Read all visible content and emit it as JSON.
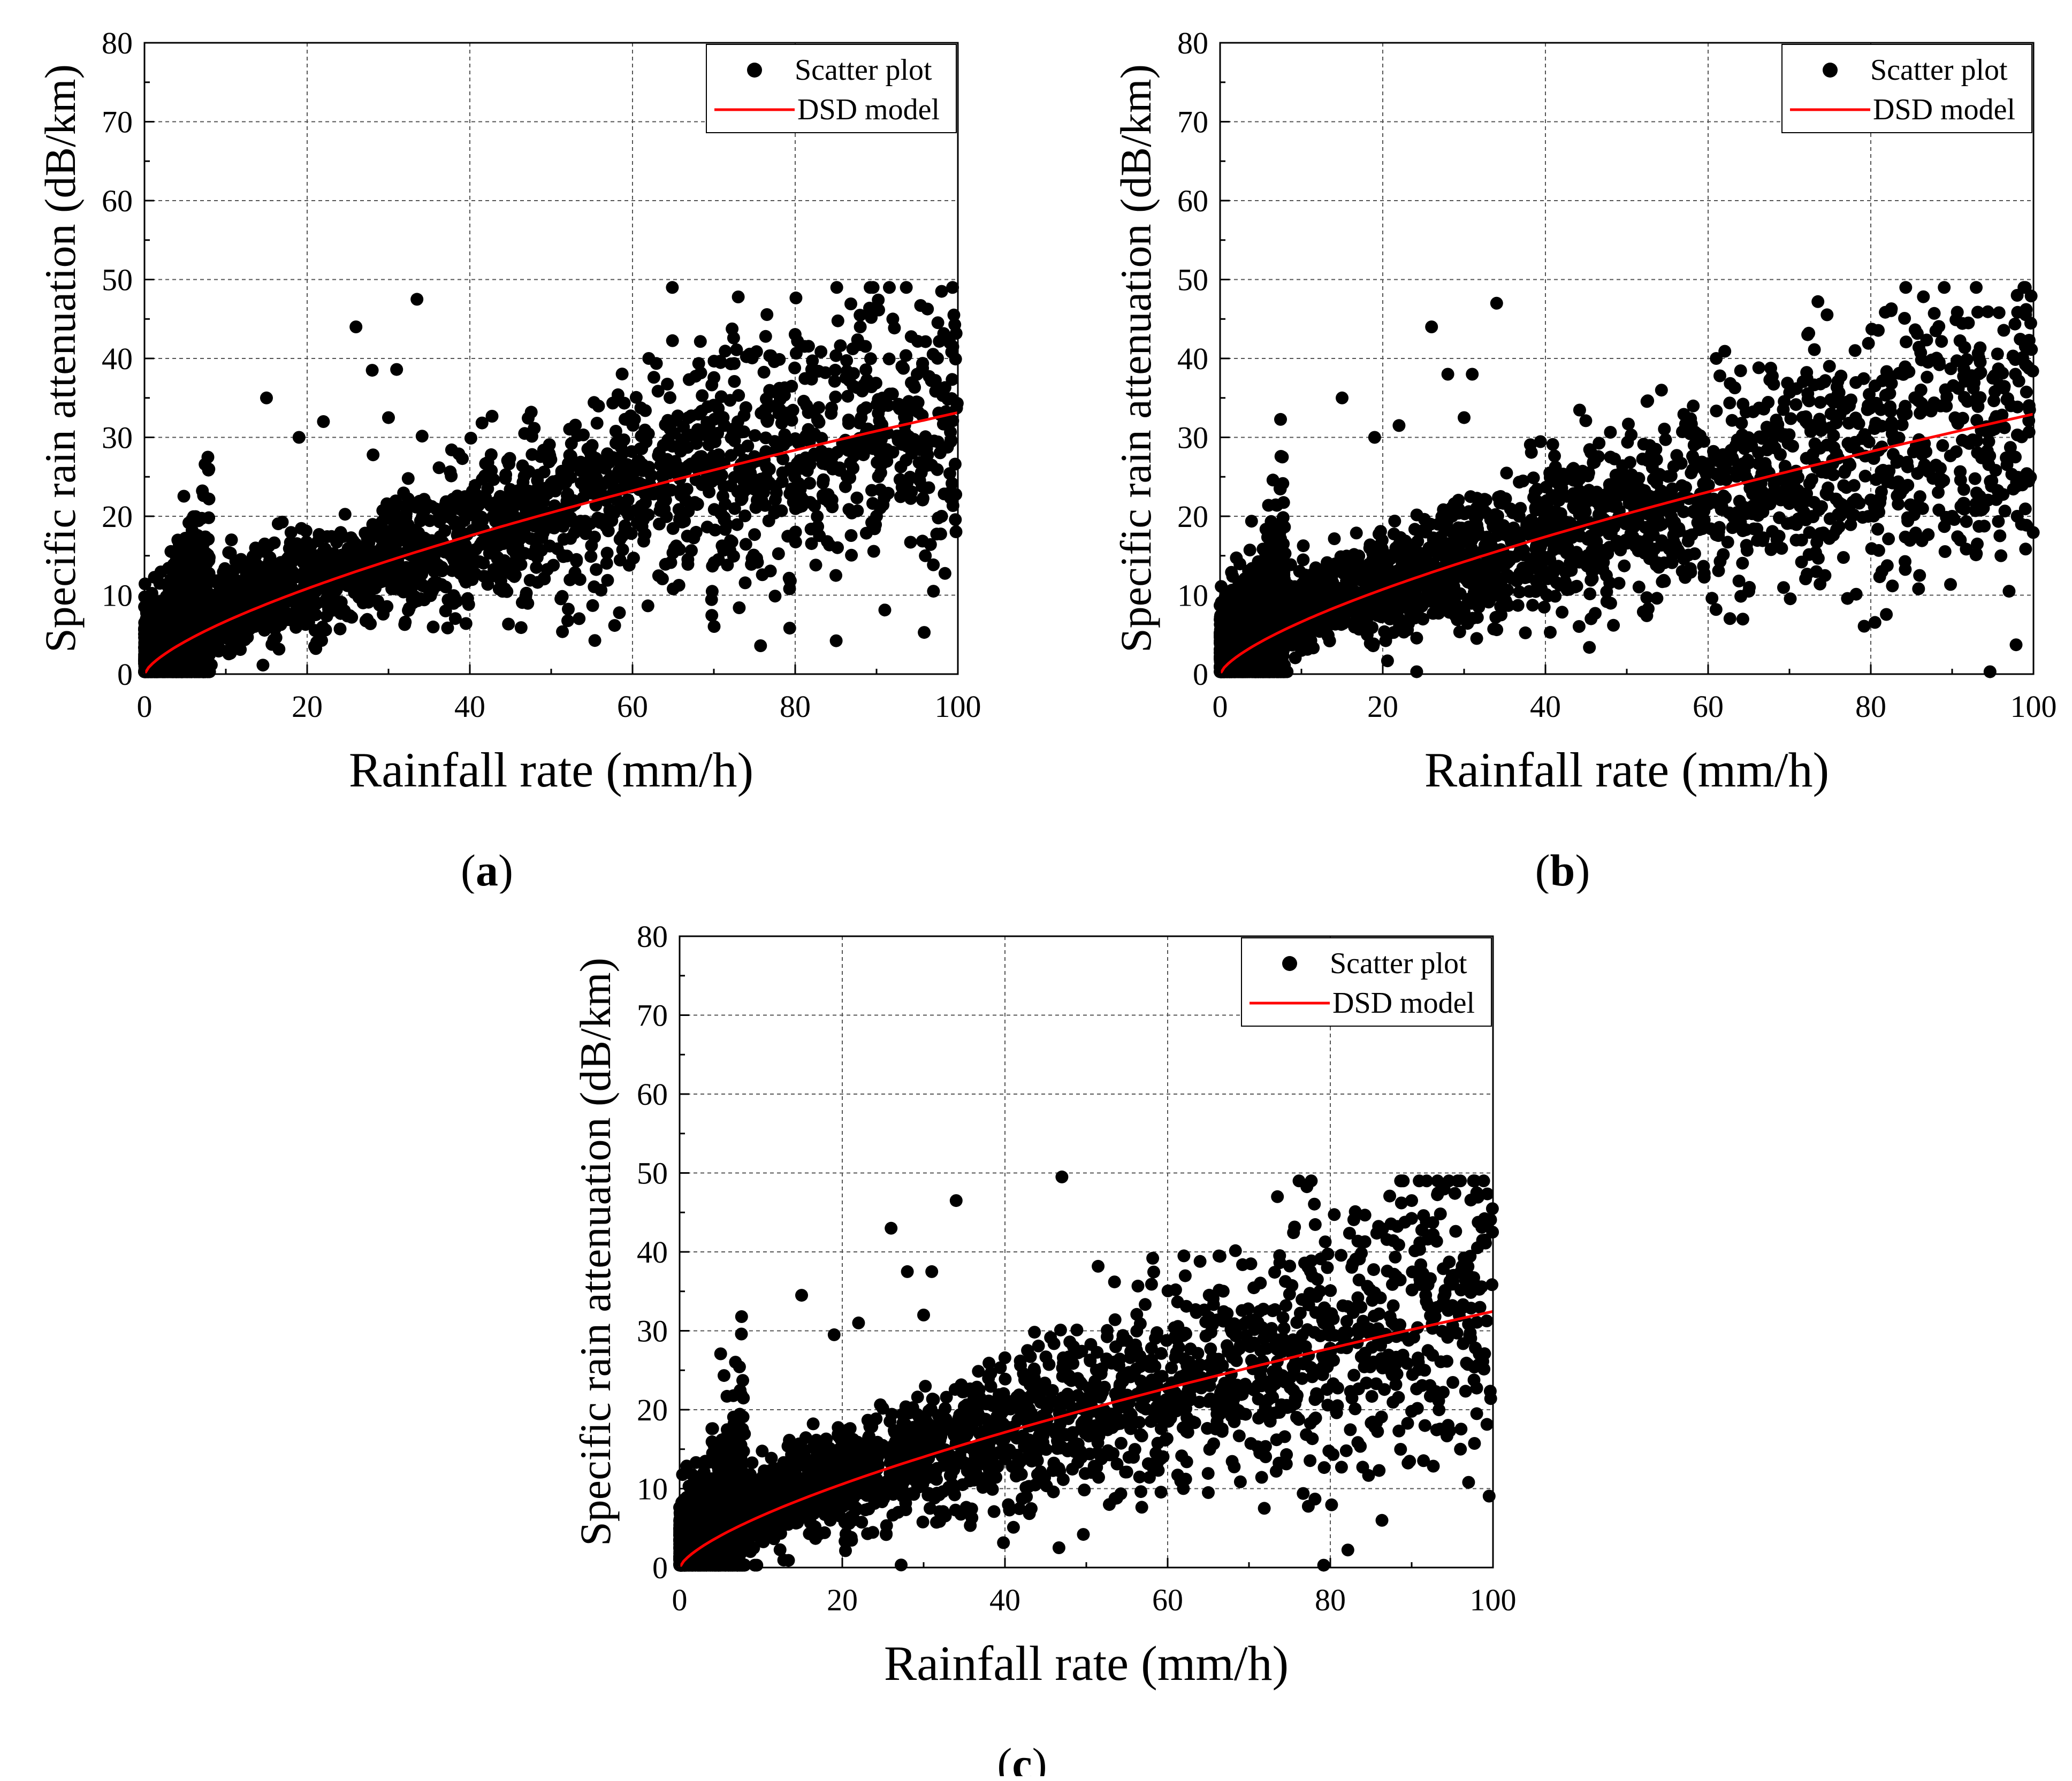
{
  "chart_data": [
    {
      "id": "a",
      "type": "scatter",
      "caption_open": "(",
      "caption_letter": "a",
      "caption_close": ")",
      "xlabel": "Rainfall rate (mm/h)",
      "ylabel": "Specific rain attenuation (dB/km)",
      "xlim": [
        0,
        100
      ],
      "ylim": [
        0,
        80
      ],
      "xticks": [
        0,
        20,
        40,
        60,
        80,
        100
      ],
      "yticks": [
        0,
        10,
        20,
        30,
        40,
        50,
        60,
        70,
        80
      ],
      "grid": true,
      "legend_position": "top-right",
      "legend": [
        {
          "label": "Scatter plot",
          "marker": "circle",
          "color": "#000000"
        },
        {
          "label": "DSD model",
          "marker": "line",
          "color": "#ff0000"
        }
      ],
      "model": {
        "name": "DSD model",
        "coef": 1.35,
        "exp": 0.695,
        "color": "#ff0000"
      },
      "outliers": [
        [
          26,
          44
        ],
        [
          33.5,
          47.5
        ],
        [
          73,
          47.8
        ],
        [
          98,
          48.5
        ],
        [
          92,
          45
        ],
        [
          88,
          44
        ],
        [
          28,
          38.5
        ],
        [
          31,
          38.6
        ],
        [
          15,
          35
        ],
        [
          30,
          32.5
        ],
        [
          19,
          30
        ],
        [
          22,
          32
        ],
        [
          62,
          40
        ],
        [
          65,
          10.8
        ],
        [
          85,
          12.5
        ],
        [
          97,
          10.5
        ],
        [
          96,
          15
        ],
        [
          98,
          20
        ],
        [
          90,
          20
        ],
        [
          95,
          38
        ],
        [
          99,
          42
        ]
      ],
      "scatter_seed": 11
    },
    {
      "id": "b",
      "type": "scatter",
      "caption_open": "(",
      "caption_letter": "b",
      "caption_close": ")",
      "xlabel": "Rainfall rate (mm/h)",
      "ylabel": "Specific rain attenuation (dB/km)",
      "xlim": [
        0,
        100
      ],
      "ylim": [
        0,
        80
      ],
      "xticks": [
        0,
        20,
        40,
        60,
        80,
        100
      ],
      "yticks": [
        0,
        10,
        20,
        30,
        40,
        50,
        60,
        70,
        80
      ],
      "grid": true,
      "legend_position": "top-right",
      "legend": [
        {
          "label": "Scatter plot",
          "marker": "circle",
          "color": "#000000"
        },
        {
          "label": "DSD model",
          "marker": "line",
          "color": "#ff0000"
        }
      ],
      "model": {
        "name": "DSD model",
        "coef": 1.33,
        "exp": 0.697,
        "color": "#ff0000"
      },
      "outliers": [
        [
          26,
          44
        ],
        [
          34,
          47
        ],
        [
          73.5,
          47.2
        ],
        [
          98,
          48
        ],
        [
          92,
          44.5
        ],
        [
          88,
          43.5
        ],
        [
          28,
          38
        ],
        [
          31,
          38
        ],
        [
          15,
          35
        ],
        [
          30,
          32.5
        ],
        [
          19,
          30
        ],
        [
          22,
          31.5
        ],
        [
          61,
          40
        ],
        [
          65,
          10.5
        ],
        [
          86,
          12.5
        ],
        [
          97,
          10.5
        ],
        [
          96,
          15
        ],
        [
          98,
          20
        ],
        [
          90,
          20
        ],
        [
          95,
          37.5
        ],
        [
          99,
          41.5
        ]
      ],
      "scatter_seed": 23
    },
    {
      "id": "c",
      "type": "scatter",
      "caption_open": "(",
      "caption_letter": "c",
      "caption_close": ")",
      "xlabel": "Rainfall rate (mm/h)",
      "ylabel": "Specific rain attenuation (dB/km)",
      "xlim": [
        0,
        100
      ],
      "ylim": [
        0,
        80
      ],
      "xticks": [
        0,
        20,
        40,
        60,
        80,
        100
      ],
      "yticks": [
        0,
        10,
        20,
        30,
        40,
        50,
        60,
        70,
        80
      ],
      "grid": true,
      "legend_position": "top-right",
      "legend": [
        {
          "label": "Scatter plot",
          "marker": "circle",
          "color": "#000000"
        },
        {
          "label": "DSD model",
          "marker": "line",
          "color": "#ff0000"
        }
      ],
      "model": {
        "name": "DSD model",
        "coef": 1.31,
        "exp": 0.697,
        "color": "#ff0000"
      },
      "outliers": [
        [
          47,
          49.5
        ],
        [
          34,
          46.5
        ],
        [
          73.5,
          47
        ],
        [
          98,
          47.5
        ],
        [
          90,
          46.5
        ],
        [
          26,
          43
        ],
        [
          28,
          37.5
        ],
        [
          31,
          37.5
        ],
        [
          15,
          34.5
        ],
        [
          30,
          32
        ],
        [
          19,
          29.5
        ],
        [
          22,
          31
        ],
        [
          62,
          39.5
        ],
        [
          65,
          9.5
        ],
        [
          86,
          12.3
        ],
        [
          97,
          10.8
        ],
        [
          96,
          15
        ],
        [
          98,
          19.5
        ],
        [
          90,
          19.8
        ],
        [
          95,
          37
        ],
        [
          99,
          41.5
        ]
      ],
      "scatter_seed": 37
    }
  ]
}
